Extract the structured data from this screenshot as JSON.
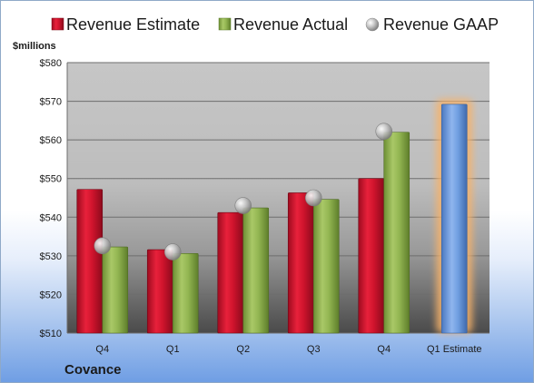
{
  "legend": {
    "estimate": "Revenue Estimate",
    "actual": "Revenue Actual",
    "gaap": "Revenue GAAP"
  },
  "company": "Covance",
  "colors": {
    "estimate": "#c8102e",
    "actual": "#8cb04a",
    "gaap": "#bfbfbf",
    "highlight": "#6f9ee0",
    "highlight_glow": "#f7b26a"
  },
  "chart_data": {
    "type": "bar",
    "ylabel": "$millions",
    "ylim": [
      510,
      580
    ],
    "yticks": [
      510,
      520,
      530,
      540,
      550,
      560,
      570,
      580
    ],
    "ytick_labels": [
      "$510",
      "$520",
      "$530",
      "$540",
      "$550",
      "$560",
      "$570",
      "$580"
    ],
    "categories": [
      "Q4",
      "Q1",
      "Q2",
      "Q3",
      "Q4",
      "Q1 Estimate"
    ],
    "grid": true,
    "legend_position": "top",
    "series": [
      {
        "name": "Revenue Estimate",
        "values": [
          547.2,
          531.6,
          541.2,
          546.3,
          550,
          null
        ]
      },
      {
        "name": "Revenue Actual",
        "values": [
          532.3,
          530.6,
          542.4,
          544.6,
          562,
          null
        ]
      },
      {
        "name": "Revenue GAAP",
        "values": [
          532.6,
          531,
          543,
          545,
          562.2,
          null
        ]
      }
    ],
    "highlight": {
      "category": "Q1 Estimate",
      "value": 569.2
    }
  }
}
